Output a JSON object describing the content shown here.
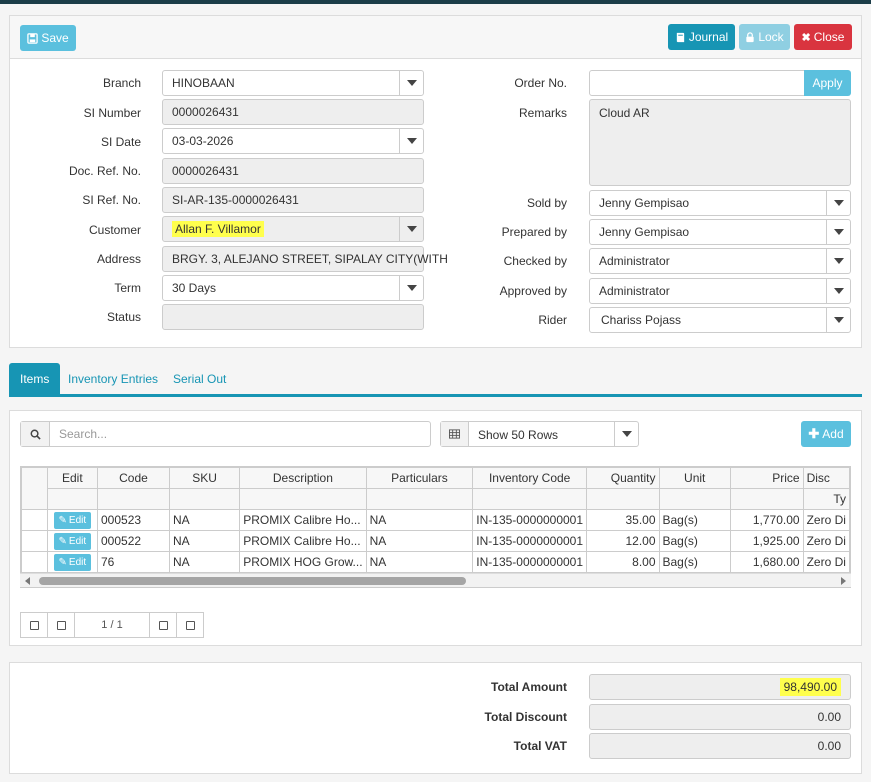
{
  "toolbar": {
    "save_label": "Save",
    "journal_label": "Journal",
    "lock_label": "Lock",
    "close_label": "Close"
  },
  "form": {
    "branch_label": "Branch",
    "branch_value": "HINOBAAN",
    "si_number_label": "SI Number",
    "si_number_value": "0000026431",
    "si_date_label": "SI Date",
    "si_date_value": "03-03-2026",
    "doc_ref_label": "Doc. Ref. No.",
    "doc_ref_value": "0000026431",
    "si_ref_label": "SI Ref. No.",
    "si_ref_value": "SI-AR-135-0000026431",
    "customer_label": "Customer",
    "customer_value": "Allan F. Villamor",
    "address_label": "Address",
    "address_value": "BRGY. 3, ALEJANO STREET, SIPALAY CITY(WITH",
    "term_label": "Term",
    "term_value": "30 Days",
    "status_label": "Status",
    "status_value": "",
    "order_no_label": "Order No.",
    "order_no_value": "",
    "apply_label": "Apply",
    "remarks_label": "Remarks",
    "remarks_value": "Cloud AR",
    "sold_by_label": "Sold by",
    "sold_by_value": "Jenny Gempisao",
    "prepared_by_label": "Prepared by",
    "prepared_by_value": "Jenny Gempisao",
    "checked_by_label": "Checked by",
    "checked_by_value": "Administrator",
    "approved_by_label": "Approved by",
    "approved_by_value": "Administrator",
    "rider_label": "Rider",
    "rider_value": "Chariss Pojass"
  },
  "tabs": [
    "Items",
    "Inventory Entries",
    "Serial Out"
  ],
  "items": {
    "search_placeholder": "Search...",
    "rows_option": "Show 50 Rows",
    "add_label": "Add",
    "columns": [
      "Edit",
      "Code",
      "SKU",
      "Description",
      "Particulars",
      "Inventory Code",
      "Quantity",
      "Unit",
      "Price",
      "Disc"
    ],
    "sub_header": "Ty",
    "edit_label": "Edit",
    "rows": [
      {
        "code": "000523",
        "sku": "NA",
        "description": "PROMIX Calibre Ho...",
        "particulars": "NA",
        "inventory_code": "IN-135-0000000001",
        "quantity": "35.00",
        "unit": "Bag(s)",
        "price": "1,770.00",
        "disc": "Zero Di"
      },
      {
        "code": "000522",
        "sku": "NA",
        "description": "PROMIX Calibre Ho...",
        "particulars": "NA",
        "inventory_code": "IN-135-0000000001",
        "quantity": "12.00",
        "unit": "Bag(s)",
        "price": "1,925.00",
        "disc": "Zero Di"
      },
      {
        "code": "76",
        "sku": "NA",
        "description": "PROMIX HOG Grow...",
        "particulars": "NA",
        "inventory_code": "IN-135-0000000001",
        "quantity": "8.00",
        "unit": "Bag(s)",
        "price": "1,680.00",
        "disc": "Zero Di"
      }
    ],
    "pager_info": "1 / 1"
  },
  "totals": {
    "amount_label": "Total Amount",
    "amount_value": "98,490.00",
    "discount_label": "Total Discount",
    "discount_value": "0.00",
    "vat_label": "Total VAT",
    "vat_value": "0.00"
  },
  "colors": {
    "primary": "#1795b4",
    "info": "#5bc0de",
    "danger": "#d9343f",
    "highlight": "#ffff4d"
  }
}
